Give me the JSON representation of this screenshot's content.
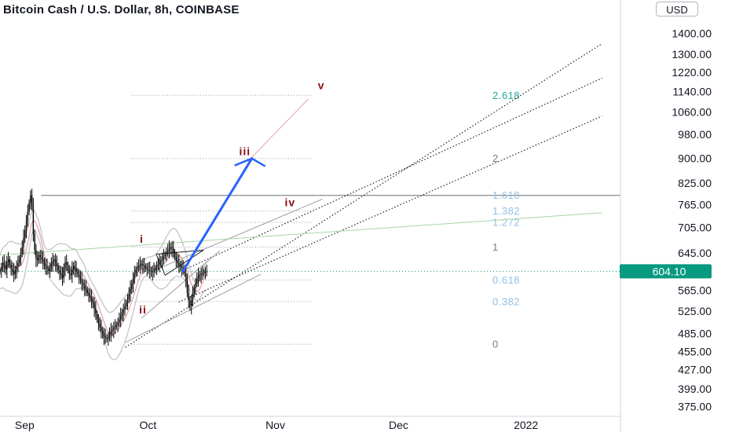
{
  "header": {
    "title": "Bitcoin Cash / U.S. Dollar, 8h, COINBASE",
    "currency_button": "USD"
  },
  "colors": {
    "candle": "#000000",
    "bollinger": "#c4c4c4",
    "moving_average": "#e8a3a3",
    "projection_arrow": "#2962ff",
    "price_badge": "#089981",
    "fib_blue": "#90bfe6",
    "fib_teal": "#26a69a",
    "fib_gray": "#787b86",
    "wave_label": "#880e0e",
    "green_trendline": "#a5d6a7"
  },
  "chart_data": {
    "type": "candlestick",
    "symbol": "Bitcoin Cash / U.S. Dollar",
    "interval": "8h",
    "exchange": "COINBASE",
    "last_price": "604.10",
    "y_axis_scale": "log",
    "y_ticks": [
      "1400.00",
      "1300.00",
      "1220.00",
      "1140.00",
      "1060.00",
      "980.00",
      "900.00",
      "825.00",
      "765.00",
      "705.00",
      "645.00",
      "565.00",
      "525.00",
      "485.00",
      "455.00",
      "427.00",
      "399.00",
      "375.00"
    ],
    "x_ticks": [
      "Sep",
      "Oct",
      "Nov",
      "Dec",
      "2022"
    ],
    "x_tick_days": [
      1,
      31,
      62,
      92,
      123
    ],
    "x_range_days": [
      -5,
      146
    ],
    "y_range": [
      362,
      1575
    ],
    "horizontal_resistance": 790,
    "fib_levels": [
      {
        "label": "2.618",
        "value": 1125,
        "color": "teal"
      },
      {
        "label": "2",
        "value": 900,
        "color": "gray"
      },
      {
        "label": "1.618",
        "value": 790,
        "color": "blue"
      },
      {
        "label": "1.382",
        "value": 748,
        "color": "blue"
      },
      {
        "label": "1.272",
        "value": 718,
        "color": "blue"
      },
      {
        "label": "1",
        "value": 658,
        "color": "gray"
      },
      {
        "label": "0.618",
        "value": 586,
        "color": "blue"
      },
      {
        "label": "0.382",
        "value": 543,
        "color": "blue"
      },
      {
        "label": "0",
        "value": 467,
        "color": "gray"
      }
    ],
    "wave_labels": [
      {
        "label": "i",
        "day": 29.5,
        "price": 668
      },
      {
        "label": "ii",
        "day": 29.8,
        "price": 521
      },
      {
        "label": "iii",
        "day": 54.6,
        "price": 910
      },
      {
        "label": "iv",
        "day": 65.6,
        "price": 760
      },
      {
        "label": "v",
        "day": 73.2,
        "price": 1150
      }
    ],
    "projection": {
      "from_day": 39.5,
      "from_price": 604,
      "to_day": 56.3,
      "to_price": 900
    },
    "candles_close": [
      605,
      612,
      622,
      618,
      608,
      625,
      630,
      618,
      610,
      604,
      598,
      607,
      615,
      622,
      632,
      645,
      658,
      680,
      700,
      722,
      745,
      770,
      790,
      760,
      690,
      652,
      632,
      628,
      640,
      636,
      630,
      625,
      619,
      615,
      610,
      605,
      612,
      620,
      626,
      630,
      622,
      615,
      606,
      600,
      596,
      590,
      612,
      624,
      618,
      607,
      600,
      596,
      608,
      615,
      610,
      604,
      598,
      592,
      586,
      580,
      575,
      570,
      566,
      560,
      555,
      550,
      545,
      540,
      530,
      520,
      510,
      502,
      495,
      490,
      485,
      480,
      478,
      476,
      479,
      484,
      489,
      492,
      495,
      497,
      500,
      504,
      510,
      516,
      522,
      528,
      534,
      540,
      548,
      558,
      568,
      578,
      590,
      600,
      608,
      613,
      616,
      618,
      620,
      617,
      614,
      611,
      609,
      607,
      605,
      603,
      604,
      607,
      611,
      615,
      619,
      624,
      628,
      632,
      637,
      641,
      646,
      650,
      654,
      658,
      655,
      646,
      636,
      628,
      622,
      618,
      615,
      612,
      610,
      600,
      585,
      560,
      545,
      535,
      545,
      558,
      570,
      580,
      588,
      594,
      597,
      599,
      600,
      602,
      603,
      604
    ],
    "trend_lines": [
      {
        "style": "dotted",
        "from": [
          25.5,
          462
        ],
        "to": [
          141.5,
          1350
        ]
      },
      {
        "style": "dotted",
        "from": [
          38.5,
          602
        ],
        "to": [
          141.5,
          1195
        ]
      },
      {
        "style": "dotted",
        "from": [
          38.5,
          542
        ],
        "to": [
          141.5,
          1045
        ]
      },
      {
        "style": "solid-gray",
        "from": [
          29.5,
          512
        ],
        "to": [
          48.5,
          650
        ]
      },
      {
        "style": "solid-gray",
        "from": [
          33.5,
          610
        ],
        "to": [
          73.5,
          780
        ]
      },
      {
        "style": "solid-gray",
        "from": [
          25.5,
          470
        ],
        "to": [
          58.5,
          598
        ]
      },
      {
        "style": "solid-green",
        "from": [
          -5,
          640
        ],
        "to": [
          141.5,
          743
        ]
      },
      {
        "style": "solid-pink",
        "from": [
          56,
          900
        ],
        "to": [
          70,
          1110
        ]
      }
    ]
  }
}
